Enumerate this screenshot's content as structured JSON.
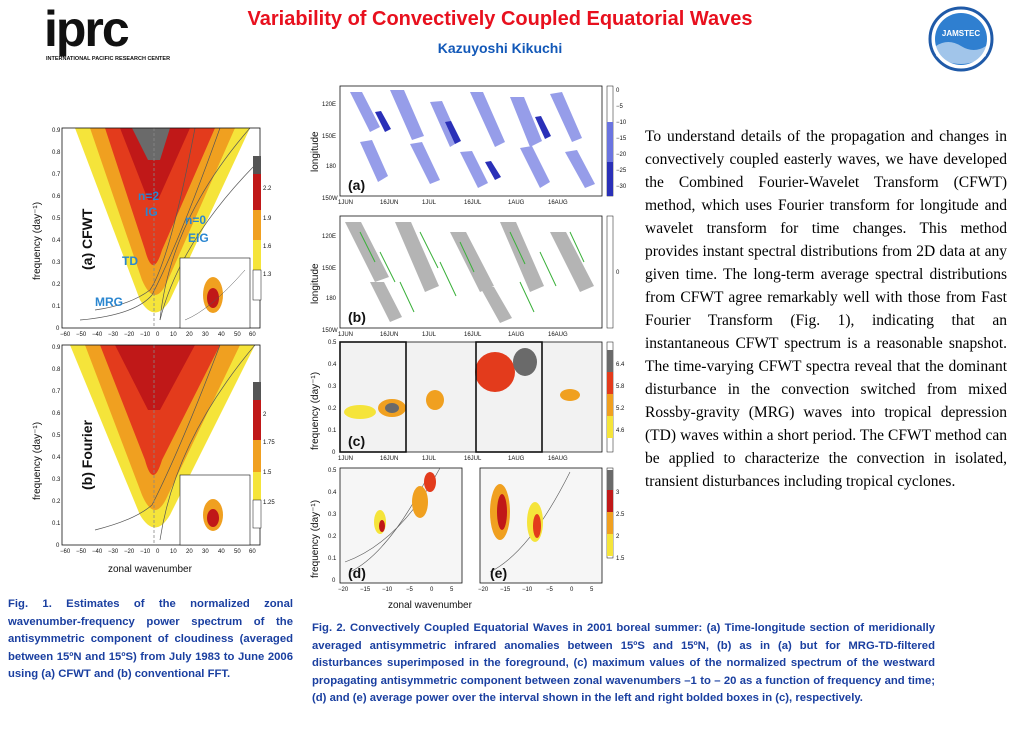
{
  "header": {
    "logo_left_text": "iprc",
    "logo_left_subtitle": "INTERNATIONAL PACIFIC RESEARCH CENTER",
    "title": "Variability of Convectively Coupled Equatorial Waves",
    "author": "Kazuyoshi Kikuchi",
    "logo_right_text": "JAMSTEC"
  },
  "fig1": {
    "panel_a_label": "(a) CFWT",
    "panel_b_label": "(b) Fourier",
    "ylabel": "frequency (day⁻¹)",
    "xlabel": "zonal wavenumber",
    "yticks": [
      "0.9",
      "0.8",
      "0.7",
      "0.6",
      "0.5",
      "0.4",
      "0.3",
      "0.2",
      "0.1",
      "0"
    ],
    "xticks": [
      "−60",
      "−50",
      "−40",
      "−30",
      "−20",
      "−10",
      "0",
      "10",
      "20",
      "30",
      "40",
      "50",
      "60"
    ],
    "wave_labels": {
      "n2ig": "n=2",
      "ig": "IG",
      "n0": "n=0",
      "eig": "EIG",
      "td": "TD",
      "mrg": "MRG"
    },
    "colorbar_a": [
      "2.2",
      "1.9",
      "1.6",
      "1.3"
    ],
    "colorbar_b": [
      "2",
      "1.75",
      "1.5",
      "1.25"
    ]
  },
  "fig2": {
    "label_a": "(a)",
    "label_b": "(b)",
    "label_c": "(c)",
    "label_d": "(d)",
    "label_e": "(e)",
    "longitude_label": "longitude",
    "lon_ticks": [
      "120E",
      "150E",
      "180",
      "150W"
    ],
    "time_ticks": [
      "1JUN",
      "16JUN",
      "1JUL",
      "16JUL",
      "1AUG",
      "16AUG"
    ],
    "freq_label": "frequency (day⁻¹)",
    "freq_ticks": [
      "0.5",
      "0.4",
      "0.3",
      "0.2",
      "0.1",
      "0"
    ],
    "xlabel": "zonal wavenumber",
    "de_xticks": [
      "−20",
      "−15",
      "−10",
      "−5",
      "0",
      "5"
    ],
    "colorbar_a": [
      "0",
      "−5",
      "−10",
      "−15",
      "−20",
      "−25",
      "−30"
    ],
    "colorbar_b": [
      "0"
    ],
    "colorbar_c": [
      "6.4",
      "5.8",
      "5.2",
      "4.6"
    ],
    "colorbar_de": [
      "3",
      "2.5",
      "2",
      "1.5"
    ]
  },
  "body_text": "To understand details of the propagation and changes in convectively coupled easterly waves, we have developed the Combined Fourier-Wavelet Transform (CFWT) method, which uses Fourier transform for longitude and wavelet transform for time changes. This method  provides instant spectral distributions from 2D data at any given time. The long-term average spectral distributions from CFWT agree remarkably well with those from Fast Fourier Transform (Fig. 1), indicating that an instantaneous CFWT spectrum is a reasonable snapshot. The time-varying CFWT spectra reveal that the dominant disturbance in the convection switched from mixed Rossby-gravity (MRG) waves into tropical depression (TD) waves within a short period. The CFWT method can be applied to characterize the convection in isolated, transient disturbances including tropical cyclones.",
  "caption1": "Fig. 1. Estimates of the normalized zonal wavenumber-frequency power spectrum of the antisymmetric component of cloudiness (averaged between 15ºN and 15ºS) from July 1983 to June 2006 using (a) CFWT and (b) conventional FFT.",
  "caption2": "Fig. 2. Convectively Coupled Equatorial Waves in 2001 boreal summer: (a) Time-longitude section of meridionally averaged antisymmetric infrared anomalies between 15ºS and 15ºN, (b) as in (a) but for MRG-TD-filtered disturbances superimposed in the foreground, (c) maximum values of the normalized spectrum of the westward propagating antisymmetric component between zonal wavenumbers –1 to – 20 as a function of frequency and time; (d) and (e) average power over the interval shown in the left and right bolded boxes in (c), respectively.",
  "colors": {
    "title": "#e8101e",
    "author": "#1258b8",
    "caption": "#1a3fa0",
    "wave_label": "#2a86d0"
  }
}
